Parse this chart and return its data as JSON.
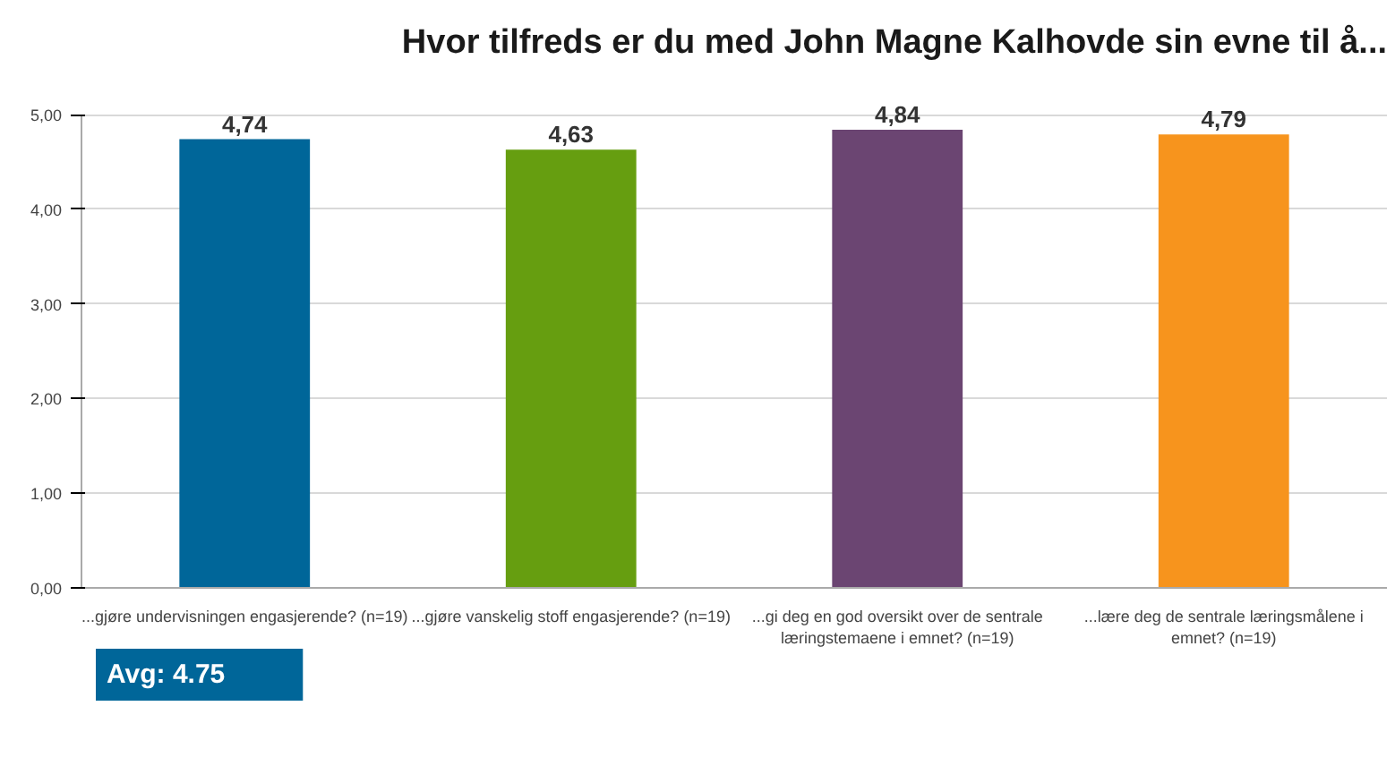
{
  "chart_data": {
    "type": "bar",
    "title": "Hvor tilfreds er du med John Magne Kalhovde sin evne til å...",
    "categories": [
      "...gjøre undervisningen engasjerende? (n=19)",
      "...gjøre vanskelig stoff engasjerende? (n=19)",
      "...gi deg en god oversikt over de sentrale læringstemaene i emnet? (n=19)",
      "...lære deg de sentrale læringsmålene i emnet? (n=19)"
    ],
    "values": [
      4.74,
      4.63,
      4.84,
      4.79
    ],
    "colors": [
      "#006699",
      "#669e10",
      "#6b4572",
      "#f7941d"
    ],
    "value_labels": [
      "4,74",
      "4,63",
      "4,84",
      "4,79"
    ],
    "ylim": [
      0,
      5
    ],
    "yticks": [
      {
        "value": 0,
        "label": "0,00"
      },
      {
        "value": 1,
        "label": "1,00"
      },
      {
        "value": 2,
        "label": "2,00"
      },
      {
        "value": 3,
        "label": "3,00"
      },
      {
        "value": 4,
        "label": "4,00"
      },
      {
        "value": 5,
        "label": "5,00"
      }
    ],
    "grid": "y",
    "annotations": [
      "Avg: 4.75"
    ]
  }
}
